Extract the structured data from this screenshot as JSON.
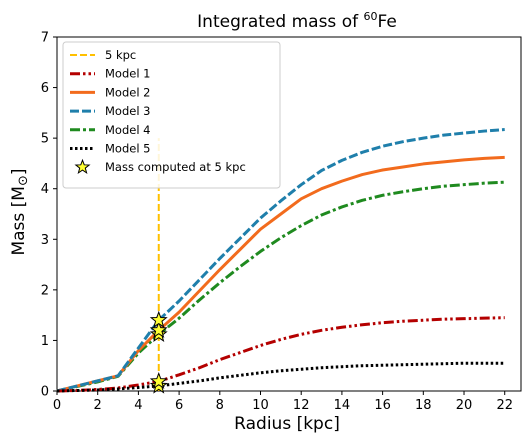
{
  "chart_data": {
    "type": "line",
    "title": "Integrated mass of ",
    "title_sup": "60",
    "title_tail": "Fe",
    "xlabel": "Radius [kpc]",
    "ylabel": "Mass [M",
    "ylabel_symbol": "⊙",
    "ylabel_tail": "]",
    "xlim": [
      0,
      22.8
    ],
    "ylim": [
      0,
      7
    ],
    "xticks": [
      0,
      2,
      4,
      6,
      8,
      10,
      12,
      14,
      16,
      18,
      20,
      22
    ],
    "yticks": [
      0,
      1,
      2,
      3,
      4,
      5,
      6,
      7
    ],
    "grid": false,
    "legend_position": "top-left",
    "vline": {
      "name": "5 kpc",
      "x": 5,
      "y_range": [
        0,
        5
      ],
      "color": "#ffc000"
    },
    "series": [
      {
        "name": "Model 1",
        "color": "#b40000",
        "dash": "dashdotdot",
        "x": [
          0,
          1,
          2,
          3,
          4,
          5,
          6,
          7,
          8,
          9,
          10,
          11,
          12,
          13,
          14,
          15,
          16,
          17,
          18,
          19,
          20,
          21,
          22
        ],
        "y": [
          0,
          0.01,
          0.03,
          0.06,
          0.12,
          0.19,
          0.32,
          0.46,
          0.62,
          0.76,
          0.9,
          1.02,
          1.12,
          1.2,
          1.26,
          1.31,
          1.35,
          1.38,
          1.4,
          1.42,
          1.43,
          1.44,
          1.45
        ]
      },
      {
        "name": "Model 2",
        "color": "#f26b1d",
        "dash": "solid",
        "x": [
          0,
          1,
          2,
          3,
          4,
          5,
          6,
          7,
          8,
          9,
          10,
          11,
          12,
          13,
          14,
          15,
          16,
          17,
          18,
          19,
          20,
          21,
          22
        ],
        "y": [
          0,
          0.1,
          0.2,
          0.3,
          0.8,
          1.2,
          1.56,
          1.98,
          2.4,
          2.8,
          3.2,
          3.5,
          3.8,
          4.0,
          4.15,
          4.28,
          4.37,
          4.43,
          4.49,
          4.53,
          4.57,
          4.6,
          4.62
        ]
      },
      {
        "name": "Model 3",
        "color": "#1f7fab",
        "dash": "dashed",
        "x": [
          0,
          1,
          2,
          3,
          4,
          5,
          6,
          7,
          8,
          9,
          10,
          11,
          12,
          13,
          14,
          15,
          16,
          17,
          18,
          19,
          20,
          21,
          22
        ],
        "y": [
          0,
          0.1,
          0.2,
          0.3,
          0.85,
          1.4,
          1.78,
          2.2,
          2.62,
          3.02,
          3.42,
          3.76,
          4.08,
          4.36,
          4.56,
          4.72,
          4.84,
          4.93,
          5.0,
          5.06,
          5.1,
          5.14,
          5.17
        ]
      },
      {
        "name": "Model 4",
        "color": "#1f8a1f",
        "dash": "dashdot",
        "x": [
          0,
          1,
          2,
          3,
          4,
          5,
          6,
          7,
          8,
          9,
          10,
          11,
          12,
          13,
          14,
          15,
          16,
          17,
          18,
          19,
          20,
          21,
          22
        ],
        "y": [
          0,
          0.09,
          0.18,
          0.29,
          0.75,
          1.12,
          1.44,
          1.8,
          2.14,
          2.46,
          2.76,
          3.03,
          3.27,
          3.48,
          3.64,
          3.77,
          3.87,
          3.94,
          4.0,
          4.05,
          4.08,
          4.11,
          4.13
        ]
      },
      {
        "name": "Model 5",
        "color": "#000000",
        "dash": "dotted",
        "x": [
          0,
          1,
          2,
          3,
          4,
          5,
          6,
          7,
          8,
          9,
          10,
          11,
          12,
          13,
          14,
          15,
          16,
          17,
          18,
          19,
          20,
          21,
          22
        ],
        "y": [
          0,
          0.01,
          0.02,
          0.04,
          0.07,
          0.1,
          0.15,
          0.2,
          0.26,
          0.31,
          0.36,
          0.4,
          0.43,
          0.46,
          0.48,
          0.5,
          0.51,
          0.52,
          0.53,
          0.54,
          0.55,
          0.55,
          0.55
        ]
      }
    ],
    "stars": {
      "name": "Mass computed at 5 kpc",
      "x": 5,
      "y": [
        0.1,
        0.19,
        1.12,
        1.2,
        1.4
      ],
      "fill": "#ffff33",
      "stroke": "#000000"
    }
  }
}
